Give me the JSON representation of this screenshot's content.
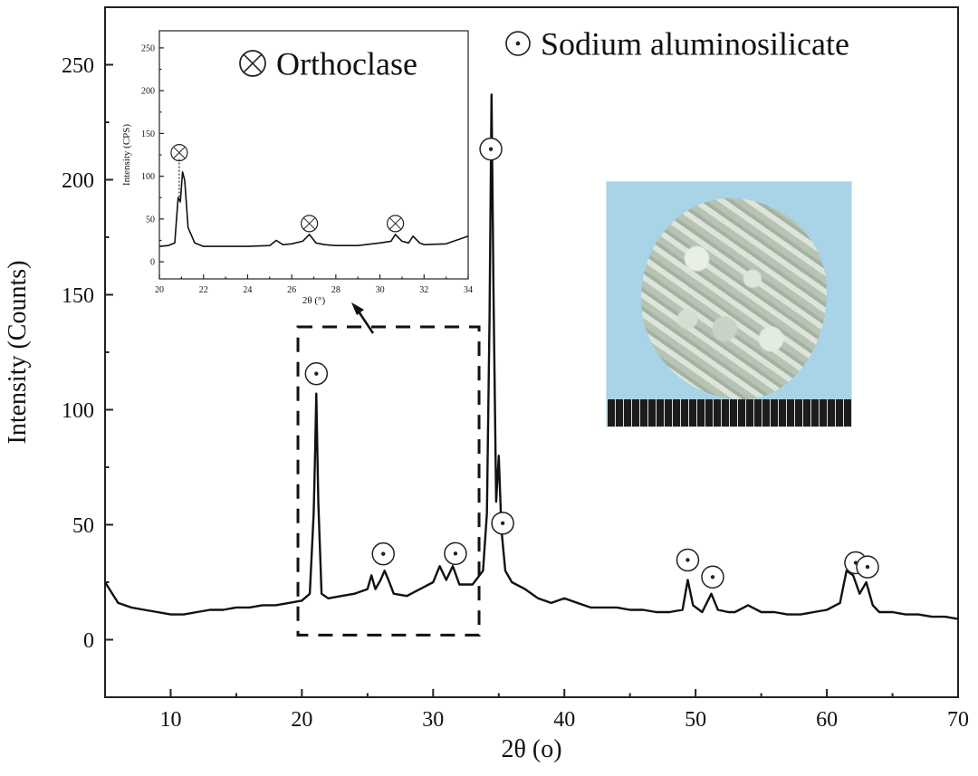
{
  "chart_data": [
    {
      "type": "line",
      "xlabel": "2θ (o)",
      "ylabel": "Intensity (Counts)",
      "xlim": [
        5,
        70
      ],
      "ylim": [
        -25,
        275
      ],
      "xticks": [
        10,
        20,
        30,
        40,
        50,
        60,
        70
      ],
      "yticks": [
        0,
        50,
        100,
        150,
        200,
        250
      ],
      "grid": false,
      "legend": [
        {
          "label": "Sodium aluminosilicate",
          "marker": "circled-dot-icon"
        }
      ],
      "peaks": [
        21.1,
        26.2,
        31.7,
        34.4,
        35.3,
        49.4,
        51.3,
        62.2,
        63.1
      ],
      "peak_marker": "circled-dot-icon",
      "series": [
        {
          "x": [
            5,
            6,
            7,
            8,
            9,
            10,
            11,
            12,
            13,
            14,
            15,
            16,
            17,
            18,
            19,
            20,
            20.6,
            20.9,
            21.0,
            21.1,
            21.25,
            21.5,
            22,
            23,
            24,
            25,
            25.3,
            25.6,
            26,
            26.3,
            26.6,
            27,
            28,
            29,
            30,
            30.5,
            31,
            31.5,
            32,
            33,
            33.8,
            34.1,
            34.3,
            34.45,
            34.6,
            34.8,
            35.0,
            35.2,
            35.5,
            36,
            37,
            38,
            39,
            40,
            41,
            42,
            43,
            44,
            45,
            46,
            47,
            48,
            49,
            49.4,
            49.8,
            50.5,
            51.2,
            51.7,
            52.5,
            53,
            54,
            55,
            56,
            57,
            58,
            59,
            60,
            61,
            61.5,
            62.0,
            62.5,
            63.0,
            63.5,
            64,
            65,
            66,
            67,
            68,
            69,
            70
          ],
          "y": [
            25,
            16,
            14,
            13,
            12,
            11,
            11,
            12,
            13,
            13,
            14,
            14,
            15,
            15,
            16,
            17,
            20,
            55,
            80,
            107,
            60,
            20,
            18,
            19,
            20,
            22,
            28,
            22,
            26,
            30,
            26,
            20,
            19,
            22,
            25,
            32,
            26,
            32,
            24,
            24,
            30,
            55,
            140,
            237,
            150,
            60,
            80,
            48,
            30,
            25,
            22,
            18,
            16,
            18,
            16,
            14,
            14,
            14,
            13,
            13,
            12,
            12,
            13,
            26,
            15,
            12,
            20,
            13,
            12,
            12,
            15,
            12,
            12,
            11,
            11,
            12,
            13,
            16,
            30,
            28,
            20,
            25,
            15,
            12,
            12,
            11,
            11,
            10,
            10,
            9
          ]
        }
      ]
    },
    {
      "type": "line",
      "xlabel": "2θ (°)",
      "ylabel": "Intensity (CPS)",
      "xlim": [
        20,
        34
      ],
      "ylim": [
        -20,
        270
      ],
      "xticks": [
        20,
        22,
        24,
        26,
        28,
        30,
        32,
        34
      ],
      "yticks": [
        0,
        50,
        100,
        150,
        200,
        250
      ],
      "grid": false,
      "legend": [
        {
          "label": "Orthoclase",
          "marker": "circled-cross-icon"
        }
      ],
      "peaks": [
        20.9,
        26.8,
        30.7
      ],
      "peak_marker": "circled-cross-icon",
      "series": [
        {
          "x": [
            20,
            20.4,
            20.7,
            20.85,
            20.95,
            21.05,
            21.15,
            21.3,
            21.6,
            22,
            23,
            24,
            25,
            25.3,
            25.6,
            26,
            26.5,
            26.8,
            27.1,
            27.5,
            28,
            29,
            30,
            30.5,
            30.7,
            31.0,
            31.3,
            31.5,
            31.8,
            32,
            33,
            34
          ],
          "y": [
            18,
            19,
            22,
            75,
            70,
            105,
            95,
            40,
            22,
            18,
            18,
            18,
            19,
            25,
            20,
            21,
            24,
            32,
            22,
            20,
            19,
            19,
            22,
            24,
            32,
            24,
            22,
            30,
            22,
            20,
            21,
            30
          ]
        }
      ]
    }
  ]
}
